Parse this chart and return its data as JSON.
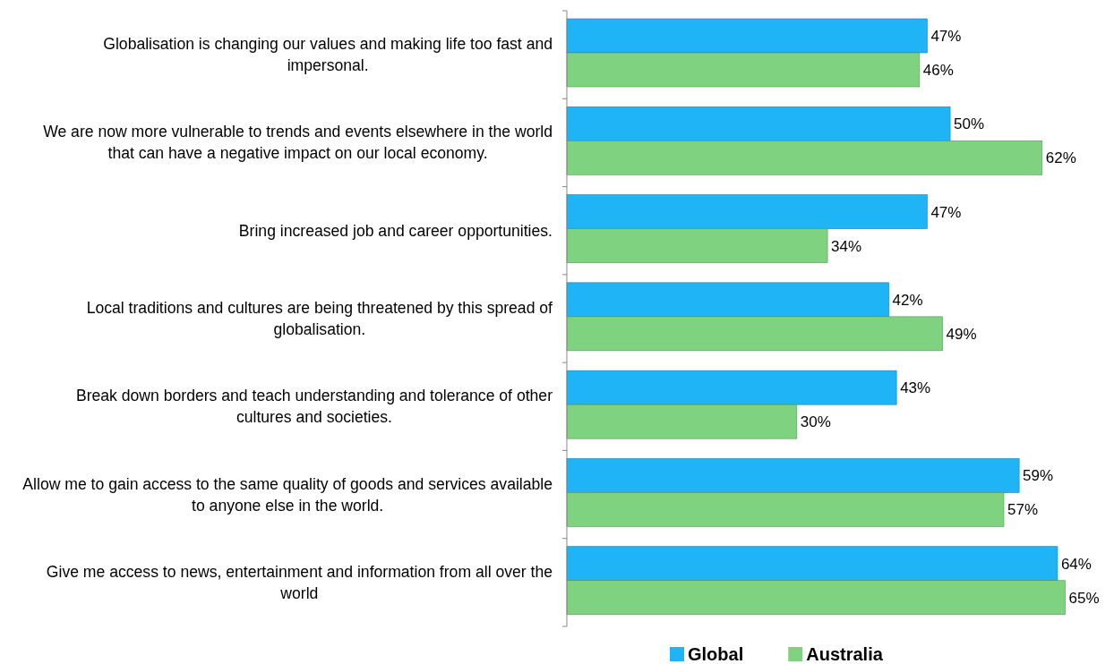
{
  "chart_data": {
    "type": "bar",
    "orientation": "horizontal",
    "categories": [
      "Globalisation is changing our values and making life too fast and impersonal.",
      "We are now more vulnerable to trends and events elsewhere in the world that can have a negative impact on our local economy.",
      "Bring increased job and career opportunities.",
      "Local traditions and cultures are being threatened by this spread of globalisation.",
      "Break down borders and teach understanding and tolerance of other cultures and societies.",
      "Allow me to gain access to the same quality of goods and services available to anyone else in the world.",
      "Give me access to news, entertainment and information from all over the world"
    ],
    "series": [
      {
        "name": "Global",
        "color": "#1fb4f5",
        "values": [
          47,
          50,
          47,
          42,
          43,
          59,
          64
        ],
        "value_labels": [
          "47%",
          "50%",
          "47%",
          "42%",
          "43%",
          "59%",
          "64%"
        ]
      },
      {
        "name": "Australia",
        "color": "#7fd27f",
        "values": [
          46,
          62,
          34,
          49,
          30,
          57,
          65
        ],
        "value_labels": [
          "46%",
          "62%",
          "34%",
          "49%",
          "30%",
          "57%",
          "65%"
        ]
      }
    ],
    "legend": "bottom"
  }
}
